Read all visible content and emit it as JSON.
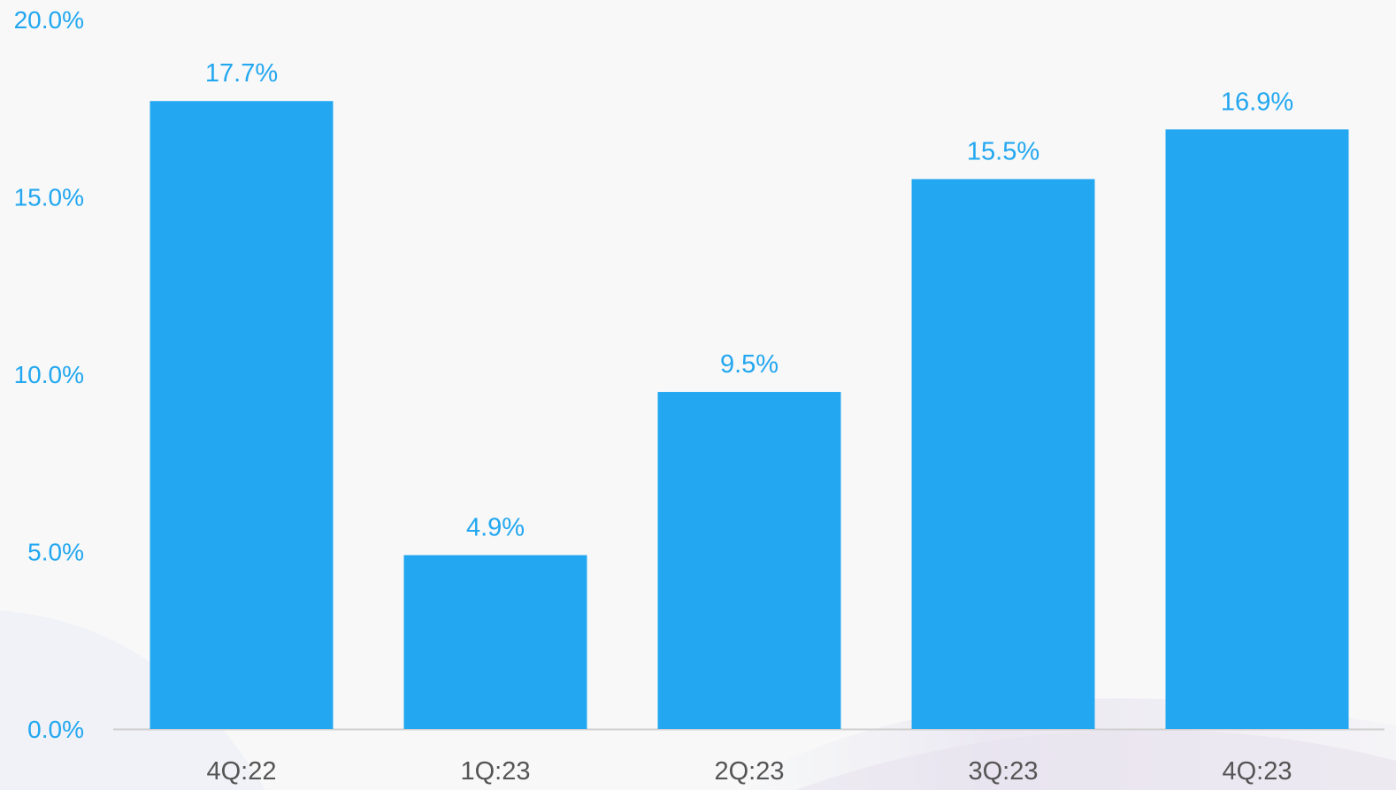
{
  "chart_data": {
    "type": "bar",
    "categories": [
      "4Q:22",
      "1Q:23",
      "2Q:23",
      "3Q:23",
      "4Q:23"
    ],
    "values": [
      17.7,
      4.9,
      9.5,
      15.5,
      16.9
    ],
    "data_labels": [
      "17.7%",
      "4.9%",
      "9.5%",
      "15.5%",
      "16.9%"
    ],
    "ylim": [
      0,
      20
    ],
    "yticks": [
      0,
      5,
      10,
      15,
      20
    ],
    "ytick_labels": [
      "0.0%",
      "5.0%",
      "10.0%",
      "15.0%",
      "20.0%"
    ],
    "grid": false,
    "legend": "none"
  },
  "colors": {
    "bar": "#22a7f0",
    "value_label": "#22a7f0",
    "axis_label": "#22a7f0",
    "category_label": "#555555",
    "axis_line": "#cfcfcf",
    "background": "#f8f8f8"
  }
}
